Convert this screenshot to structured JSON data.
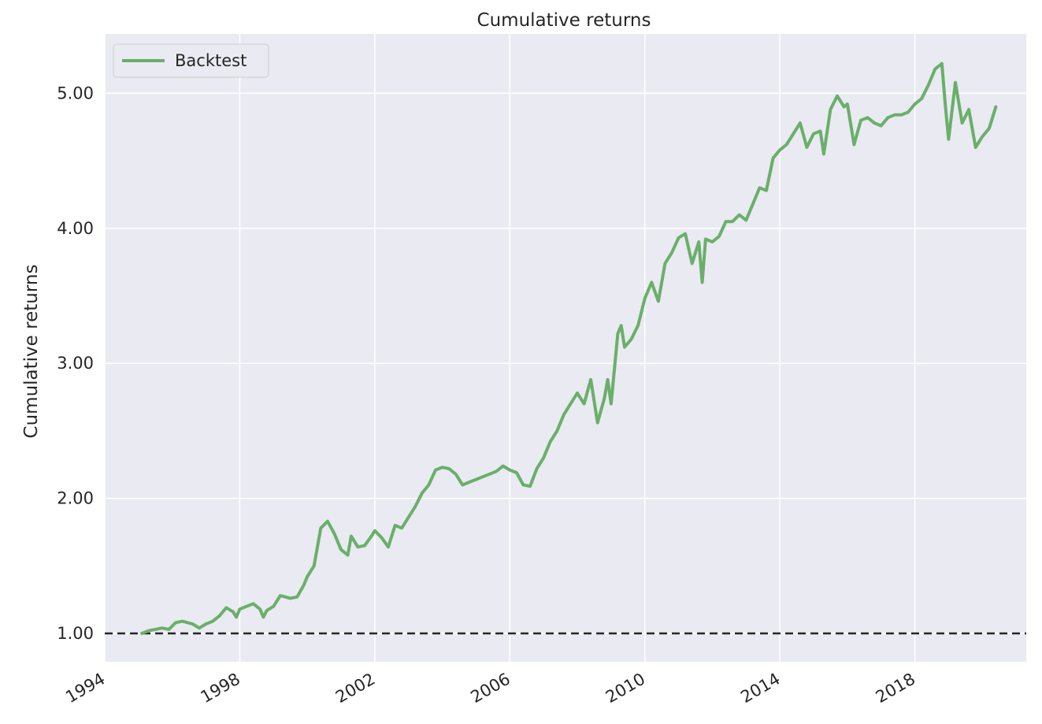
{
  "chart_data": {
    "type": "line",
    "title": "Cumulative returns",
    "xlabel": "",
    "ylabel": "Cumulative returns",
    "xlim": [
      1994.0,
      2021.3
    ],
    "ylim": [
      0.79,
      5.44
    ],
    "x_ticks": [
      {
        "value": 1994,
        "label": "1994"
      },
      {
        "value": 1998,
        "label": "1998"
      },
      {
        "value": 2002,
        "label": "2002"
      },
      {
        "value": 2006,
        "label": "2006"
      },
      {
        "value": 2010,
        "label": "2010"
      },
      {
        "value": 2014,
        "label": "2014"
      },
      {
        "value": 2018,
        "label": "2018"
      }
    ],
    "y_ticks": [
      {
        "value": 1.0,
        "label": "1.00"
      },
      {
        "value": 2.0,
        "label": "2.00"
      },
      {
        "value": 3.0,
        "label": "3.00"
      },
      {
        "value": 4.0,
        "label": "4.00"
      },
      {
        "value": 5.0,
        "label": "5.00"
      }
    ],
    "grid": true,
    "legend_position": "top-left",
    "reference_line": {
      "y": 1.0,
      "style": "dashed",
      "color": "#262626"
    },
    "series": [
      {
        "name": "Backtest",
        "color": "#6aaf6a",
        "x": [
          1995.1,
          1995.3,
          1995.5,
          1995.7,
          1995.9,
          1996.1,
          1996.3,
          1996.6,
          1996.8,
          1997.0,
          1997.2,
          1997.4,
          1997.6,
          1997.8,
          1997.9,
          1998.0,
          1998.2,
          1998.4,
          1998.6,
          1998.7,
          1998.8,
          1999.0,
          1999.2,
          1999.5,
          1999.7,
          1999.9,
          2000.0,
          2000.2,
          2000.4,
          2000.6,
          2000.8,
          2001.0,
          2001.2,
          2001.3,
          2001.5,
          2001.7,
          2001.9,
          2002.0,
          2002.2,
          2002.4,
          2002.6,
          2002.8,
          2003.0,
          2003.2,
          2003.4,
          2003.6,
          2003.8,
          2004.0,
          2004.2,
          2004.4,
          2004.6,
          2004.8,
          2005.0,
          2005.2,
          2005.4,
          2005.6,
          2005.8,
          2006.0,
          2006.2,
          2006.4,
          2006.6,
          2006.8,
          2007.0,
          2007.2,
          2007.4,
          2007.6,
          2007.8,
          2008.0,
          2008.2,
          2008.4,
          2008.6,
          2008.8,
          2008.9,
          2009.0,
          2009.2,
          2009.3,
          2009.4,
          2009.6,
          2009.8,
          2010.0,
          2010.2,
          2010.4,
          2010.6,
          2010.8,
          2011.0,
          2011.2,
          2011.4,
          2011.6,
          2011.7,
          2011.8,
          2012.0,
          2012.2,
          2012.4,
          2012.6,
          2012.8,
          2013.0,
          2013.2,
          2013.4,
          2013.6,
          2013.8,
          2014.0,
          2014.2,
          2014.4,
          2014.6,
          2014.8,
          2015.0,
          2015.2,
          2015.3,
          2015.5,
          2015.7,
          2015.9,
          2016.0,
          2016.2,
          2016.4,
          2016.6,
          2016.8,
          2017.0,
          2017.2,
          2017.4,
          2017.6,
          2017.8,
          2018.0,
          2018.2,
          2018.4,
          2018.6,
          2018.8,
          2018.9,
          2019.0,
          2019.2,
          2019.4,
          2019.6,
          2019.8,
          2020.0,
          2020.2,
          2020.4
        ],
        "y": [
          1.0,
          1.02,
          1.03,
          1.04,
          1.03,
          1.08,
          1.09,
          1.07,
          1.04,
          1.07,
          1.09,
          1.13,
          1.19,
          1.16,
          1.12,
          1.18,
          1.2,
          1.22,
          1.18,
          1.12,
          1.17,
          1.2,
          1.28,
          1.26,
          1.27,
          1.36,
          1.42,
          1.5,
          1.78,
          1.83,
          1.74,
          1.62,
          1.58,
          1.72,
          1.64,
          1.65,
          1.72,
          1.76,
          1.71,
          1.64,
          1.8,
          1.78,
          1.86,
          1.94,
          2.04,
          2.1,
          2.21,
          2.23,
          2.22,
          2.18,
          2.1,
          2.12,
          2.14,
          2.16,
          2.18,
          2.2,
          2.24,
          2.21,
          2.19,
          2.1,
          2.09,
          2.22,
          2.3,
          2.42,
          2.5,
          2.62,
          2.7,
          2.78,
          2.7,
          2.88,
          2.56,
          2.74,
          2.88,
          2.7,
          3.22,
          3.28,
          3.12,
          3.18,
          3.28,
          3.48,
          3.6,
          3.46,
          3.74,
          3.82,
          3.93,
          3.96,
          3.74,
          3.9,
          3.6,
          3.92,
          3.9,
          3.94,
          4.05,
          4.05,
          4.1,
          4.06,
          4.18,
          4.3,
          4.28,
          4.52,
          4.58,
          4.62,
          4.7,
          4.78,
          4.6,
          4.7,
          4.72,
          4.55,
          4.88,
          4.98,
          4.9,
          4.92,
          4.62,
          4.8,
          4.82,
          4.78,
          4.76,
          4.82,
          4.84,
          4.84,
          4.86,
          4.92,
          4.96,
          5.06,
          5.18,
          5.22,
          4.92,
          4.66,
          5.08,
          4.78,
          4.88,
          4.6,
          4.68,
          4.74,
          4.9
        ]
      }
    ]
  }
}
